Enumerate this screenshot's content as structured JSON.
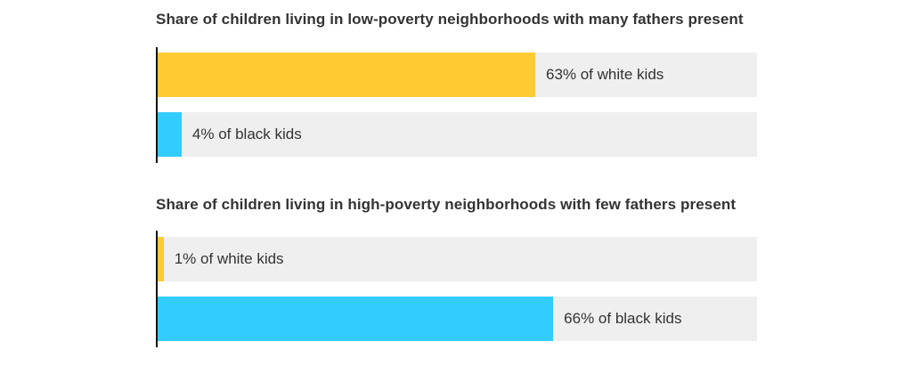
{
  "colors": {
    "white_kids": "#ffcb32",
    "black_kids": "#33ccff",
    "track": "#efefef",
    "axis": "#111111"
  },
  "chart_data": [
    {
      "type": "bar",
      "orientation": "horizontal",
      "title": "Share of children living in low-poverty neighborhoods with many fathers present",
      "categories": [
        "white kids",
        "black kids"
      ],
      "values": [
        63,
        4
      ],
      "value_unit": "%",
      "labels": [
        "63% of white kids",
        "4% of black kids"
      ],
      "xlim": [
        0,
        100
      ],
      "grid": false,
      "legend": "none"
    },
    {
      "type": "bar",
      "orientation": "horizontal",
      "title": "Share of children living in high-poverty neighborhoods with few fathers present",
      "categories": [
        "white kids",
        "black kids"
      ],
      "values": [
        1,
        66
      ],
      "value_unit": "%",
      "labels": [
        "1% of white kids",
        "66% of black kids"
      ],
      "xlim": [
        0,
        100
      ],
      "grid": false,
      "legend": "none"
    }
  ]
}
